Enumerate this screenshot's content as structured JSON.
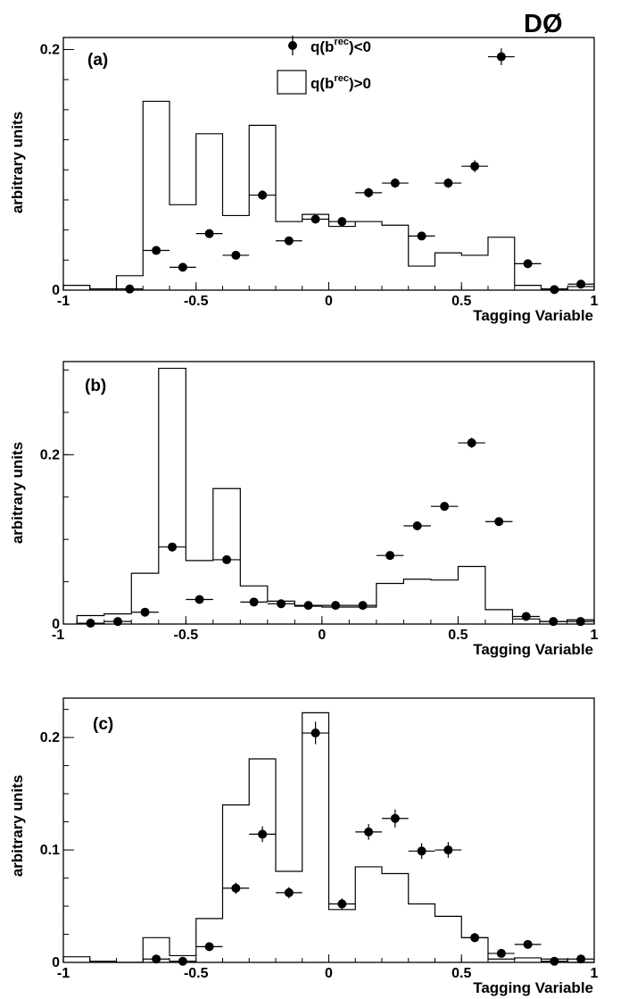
{
  "experiment_label": "DØ",
  "legend": {
    "points_label": "q(b",
    "points_sup": "rec",
    "points_suffix": ")<0",
    "hist_label": "q(b",
    "hist_sup": "rec",
    "hist_suffix": ")>0"
  },
  "chart_data": [
    {
      "type": "histogram+points",
      "panel_label": "(a)",
      "xlabel": "Tagging Variable",
      "ylabel": "arbitrary units",
      "xlim": [
        -1,
        1
      ],
      "ylim": [
        0,
        0.21
      ],
      "x_ticks": [
        -1,
        -0.5,
        0,
        0.5,
        1
      ],
      "x_tick_labels": [
        "-1",
        "-0.5",
        "0",
        "0.5",
        "1"
      ],
      "y_ticks": [
        0,
        0.2
      ],
      "y_tick_labels": [
        "0",
        "0.2"
      ],
      "hist_bins": [
        -1.0,
        -0.9,
        -0.8,
        -0.7,
        -0.6,
        -0.5,
        -0.4,
        -0.3,
        -0.2,
        -0.1,
        0.0,
        0.1,
        0.2,
        0.3,
        0.4,
        0.5,
        0.6,
        0.7,
        0.8,
        0.9,
        1.0
      ],
      "hist_values": [
        0.004,
        0.001,
        0.012,
        0.157,
        0.071,
        0.13,
        0.062,
        0.137,
        0.057,
        0.063,
        0.053,
        0.057,
        0.054,
        0.02,
        0.031,
        0.029,
        0.044,
        0.004,
        0.001,
        0.003
      ],
      "points_x": [
        -0.75,
        -0.65,
        -0.55,
        -0.45,
        -0.35,
        -0.25,
        -0.15,
        -0.05,
        0.05,
        0.15,
        0.25,
        0.35,
        0.45,
        0.55,
        0.65,
        0.75,
        0.85,
        0.95
      ],
      "points_y": [
        0.001,
        0.033,
        0.019,
        0.047,
        0.029,
        0.079,
        0.041,
        0.059,
        0.057,
        0.081,
        0.089,
        0.045,
        0.089,
        0.103,
        0.194,
        0.022,
        0.0005,
        0.005
      ],
      "points_yerr": [
        0.001,
        0.003,
        0.002,
        0.003,
        0.003,
        0.004,
        0.003,
        0.003,
        0.003,
        0.004,
        0.004,
        0.003,
        0.004,
        0.005,
        0.007,
        0.003,
        0.001,
        0.002
      ]
    },
    {
      "type": "histogram+points",
      "panel_label": "(b)",
      "xlabel": "Tagging Variable",
      "ylabel": "arbitrary units",
      "xlim": [
        -0.95,
        1
      ],
      "ylim": [
        0,
        0.31
      ],
      "x_ticks": [
        -1,
        -0.5,
        0,
        0.5,
        1
      ],
      "x_tick_labels": [
        "-1",
        "-0.5",
        "0",
        "0.5",
        "1"
      ],
      "y_ticks": [
        0,
        0.2
      ],
      "y_tick_labels": [
        "0",
        "0.2"
      ],
      "hist_bins": [
        -0.9,
        -0.8,
        -0.7,
        -0.6,
        -0.5,
        -0.4,
        -0.3,
        -0.2,
        -0.1,
        0.0,
        0.1,
        0.2,
        0.3,
        0.4,
        0.5,
        0.6,
        0.7,
        0.8,
        0.9,
        1.0
      ],
      "hist_values": [
        0.01,
        0.012,
        0.06,
        0.302,
        0.075,
        0.16,
        0.045,
        0.027,
        0.021,
        0.02,
        0.02,
        0.048,
        0.053,
        0.052,
        0.068,
        0.017,
        0.006,
        0.003,
        0.005
      ],
      "points_x": [
        -0.85,
        -0.75,
        -0.65,
        -0.55,
        -0.45,
        -0.35,
        -0.25,
        -0.15,
        -0.05,
        0.05,
        0.15,
        0.25,
        0.35,
        0.45,
        0.55,
        0.65,
        0.75,
        0.85,
        0.95
      ],
      "points_y": [
        0.001,
        0.003,
        0.014,
        0.091,
        0.029,
        0.076,
        0.026,
        0.024,
        0.022,
        0.022,
        0.022,
        0.081,
        0.116,
        0.139,
        0.214,
        0.121,
        0.009,
        0.003,
        0.003
      ],
      "points_yerr": [
        0.001,
        0.001,
        0.002,
        0.004,
        0.002,
        0.004,
        0.002,
        0.002,
        0.002,
        0.002,
        0.002,
        0.004,
        0.004,
        0.005,
        0.006,
        0.004,
        0.002,
        0.001,
        0.001
      ]
    },
    {
      "type": "histogram+points",
      "panel_label": "(c)",
      "xlabel": "Tagging Variable",
      "ylabel": "arbitrary units",
      "xlim": [
        -1,
        1
      ],
      "ylim": [
        0,
        0.235
      ],
      "x_ticks": [
        -1,
        -0.5,
        0,
        0.5,
        1
      ],
      "x_tick_labels": [
        "-1",
        "-0.5",
        "0",
        "0.5",
        "1"
      ],
      "y_ticks": [
        0,
        0.1,
        0.2
      ],
      "y_tick_labels": [
        "0",
        "0.1",
        "0.2"
      ],
      "hist_bins": [
        -1.0,
        -0.9,
        -0.8,
        -0.7,
        -0.6,
        -0.5,
        -0.4,
        -0.3,
        -0.2,
        -0.1,
        0.0,
        0.1,
        0.2,
        0.3,
        0.4,
        0.5,
        0.6,
        0.7,
        0.8,
        0.9,
        1.0
      ],
      "hist_values": [
        0.005,
        0.001,
        0.0,
        0.022,
        0.006,
        0.039,
        0.14,
        0.181,
        0.081,
        0.222,
        0.047,
        0.085,
        0.079,
        0.052,
        0.041,
        0.022,
        0.003,
        0.004,
        0.003,
        0.0
      ],
      "points_x": [
        -0.65,
        -0.55,
        -0.45,
        -0.35,
        -0.25,
        -0.15,
        -0.05,
        0.05,
        0.15,
        0.25,
        0.35,
        0.45,
        0.55,
        0.65,
        0.75,
        0.85,
        0.95
      ],
      "points_y": [
        0.003,
        0.001,
        0.014,
        0.066,
        0.114,
        0.062,
        0.204,
        0.052,
        0.116,
        0.128,
        0.099,
        0.1,
        0.022,
        0.008,
        0.016,
        0.001,
        0.003
      ],
      "points_yerr": [
        0.002,
        0.001,
        0.003,
        0.005,
        0.007,
        0.005,
        0.01,
        0.005,
        0.007,
        0.008,
        0.007,
        0.007,
        0.004,
        0.002,
        0.003,
        0.001,
        0.002
      ]
    }
  ]
}
